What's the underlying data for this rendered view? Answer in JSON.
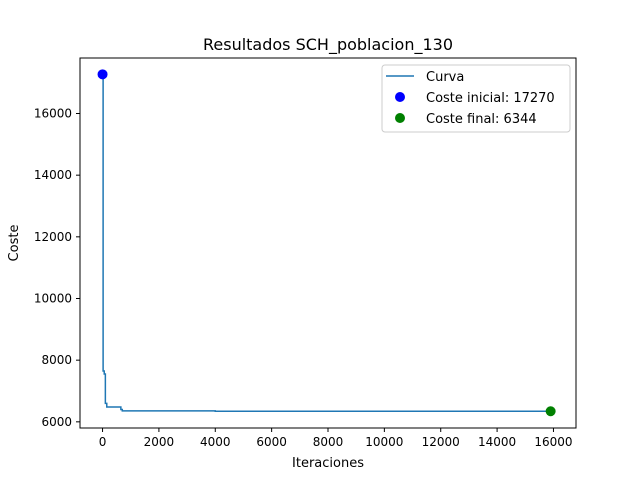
{
  "chart_data": {
    "type": "line",
    "title": "Resultados SCH_poblacion_130",
    "xlabel": "Iteraciones",
    "ylabel": "Coste",
    "xlim": [
      -800,
      16800
    ],
    "ylim": [
      5800,
      17800
    ],
    "x_ticks": [
      0,
      2000,
      4000,
      6000,
      8000,
      10000,
      12000,
      14000,
      16000
    ],
    "y_ticks": [
      6000,
      8000,
      10000,
      12000,
      14000,
      16000
    ],
    "grid": false,
    "legend_position": "upper right",
    "series": [
      {
        "name": "Curva",
        "color": "#1f77b4",
        "style": "steps",
        "points": [
          [
            0,
            17270
          ],
          [
            20,
            17270
          ],
          [
            20,
            7650
          ],
          [
            60,
            7650
          ],
          [
            60,
            7550
          ],
          [
            100,
            7550
          ],
          [
            100,
            6600
          ],
          [
            150,
            6600
          ],
          [
            150,
            6480
          ],
          [
            650,
            6480
          ],
          [
            650,
            6400
          ],
          [
            700,
            6400
          ],
          [
            700,
            6355
          ],
          [
            4000,
            6355
          ],
          [
            4000,
            6344
          ],
          [
            15900,
            6344
          ]
        ]
      }
    ],
    "markers": [
      {
        "name": "Coste inicial: 17270",
        "x": 0,
        "y": 17270,
        "color": "#0000ff"
      },
      {
        "name": "Coste final: 6344",
        "x": 15900,
        "y": 6344,
        "color": "#008000"
      }
    ]
  }
}
